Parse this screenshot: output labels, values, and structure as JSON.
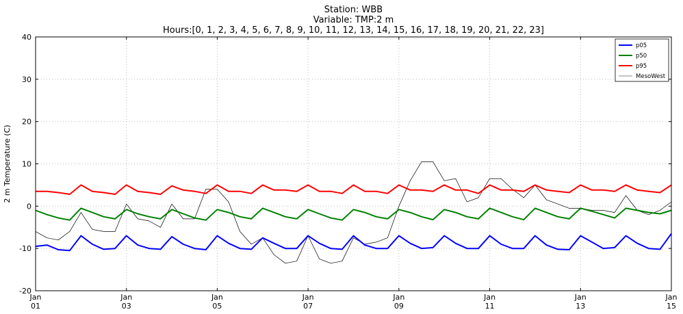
{
  "chart_data": {
    "type": "line",
    "title_lines": [
      "Station: WBB",
      "Variable: TMP:2 m",
      "Hours:[0, 1, 2, 3, 4, 5, 6, 7, 8, 9, 10, 11, 12, 13, 14, 15, 16, 17, 18, 19, 20, 21, 22, 23]"
    ],
    "xlabel": "",
    "ylabel": "2 m Temperature (C)",
    "xlim": [
      1,
      15
    ],
    "ylim": [
      -20,
      40
    ],
    "x_ticks": [
      {
        "value": 1,
        "line1": "Jan",
        "line2": "01"
      },
      {
        "value": 3,
        "line1": "Jan",
        "line2": "03"
      },
      {
        "value": 5,
        "line1": "Jan",
        "line2": "05"
      },
      {
        "value": 7,
        "line1": "Jan",
        "line2": "07"
      },
      {
        "value": 9,
        "line1": "Jan",
        "line2": "09"
      },
      {
        "value": 11,
        "line1": "Jan",
        "line2": "11"
      },
      {
        "value": 13,
        "line1": "Jan",
        "line2": "13"
      },
      {
        "value": 15,
        "line1": "Jan",
        "line2": "15"
      }
    ],
    "y_ticks": [
      -20,
      -10,
      0,
      10,
      20,
      30,
      40
    ],
    "grid": true,
    "legend_position": "top-right",
    "series": [
      {
        "name": "p05",
        "color": "#0000ff",
        "x": [
          1.0,
          1.25,
          1.5,
          1.75,
          2.0,
          2.25,
          2.5,
          2.75,
          3.0,
          3.25,
          3.5,
          3.75,
          4.0,
          4.25,
          4.5,
          4.75,
          5.0,
          5.25,
          5.5,
          5.75,
          6.0,
          6.25,
          6.5,
          6.75,
          7.0,
          7.25,
          7.5,
          7.75,
          8.0,
          8.25,
          8.5,
          8.75,
          9.0,
          9.25,
          9.5,
          9.75,
          10.0,
          10.25,
          10.5,
          10.75,
          11.0,
          11.25,
          11.5,
          11.75,
          12.0,
          12.25,
          12.5,
          12.75,
          13.0,
          13.25,
          13.5,
          13.75,
          14.0,
          14.25,
          14.5,
          14.75,
          15.0
        ],
        "y": [
          -9.5,
          -9.2,
          -10.3,
          -10.5,
          -7.0,
          -9.0,
          -10.2,
          -10.0,
          -7.0,
          -9.2,
          -10.0,
          -10.2,
          -7.2,
          -9.0,
          -10.0,
          -10.3,
          -7.0,
          -8.8,
          -10.0,
          -10.2,
          -7.5,
          -8.8,
          -10.0,
          -10.0,
          -7.0,
          -8.8,
          -10.0,
          -10.2,
          -7.0,
          -9.2,
          -10.0,
          -10.0,
          -7.0,
          -8.8,
          -10.0,
          -9.8,
          -7.0,
          -8.8,
          -10.0,
          -10.0,
          -7.0,
          -9.0,
          -10.0,
          -10.0,
          -7.0,
          -9.2,
          -10.2,
          -10.3,
          -7.0,
          -8.5,
          -10.0,
          -9.8,
          -7.0,
          -8.8,
          -10.0,
          -10.2,
          -6.5
        ]
      },
      {
        "name": "p50",
        "color": "#008000",
        "x": [
          1.0,
          1.25,
          1.5,
          1.75,
          2.0,
          2.25,
          2.5,
          2.75,
          3.0,
          3.25,
          3.5,
          3.75,
          4.0,
          4.25,
          4.5,
          4.75,
          5.0,
          5.25,
          5.5,
          5.75,
          6.0,
          6.25,
          6.5,
          6.75,
          7.0,
          7.25,
          7.5,
          7.75,
          8.0,
          8.25,
          8.5,
          8.75,
          9.0,
          9.25,
          9.5,
          9.75,
          10.0,
          10.25,
          10.5,
          10.75,
          11.0,
          11.25,
          11.5,
          11.75,
          12.0,
          12.25,
          12.5,
          12.75,
          13.0,
          13.25,
          13.5,
          13.75,
          14.0,
          14.25,
          14.5,
          14.75,
          15.0
        ],
        "y": [
          -1.0,
          -2.0,
          -2.8,
          -3.3,
          -0.5,
          -1.5,
          -2.5,
          -3.0,
          -0.8,
          -1.8,
          -2.5,
          -3.0,
          -0.8,
          -1.8,
          -2.8,
          -3.3,
          -0.8,
          -1.5,
          -2.5,
          -3.0,
          -0.5,
          -1.5,
          -2.5,
          -3.0,
          -0.8,
          -1.8,
          -2.8,
          -3.3,
          -0.8,
          -1.5,
          -2.5,
          -3.0,
          -0.8,
          -1.5,
          -2.5,
          -3.2,
          -0.8,
          -1.5,
          -2.5,
          -3.0,
          -0.5,
          -1.5,
          -2.5,
          -3.2,
          -0.5,
          -1.5,
          -2.5,
          -3.0,
          -0.5,
          -1.2,
          -2.0,
          -2.8,
          -0.5,
          -1.0,
          -1.5,
          -1.8,
          -1.0
        ]
      },
      {
        "name": "p95",
        "color": "#ff0000",
        "x": [
          1.0,
          1.25,
          1.5,
          1.75,
          2.0,
          2.25,
          2.5,
          2.75,
          3.0,
          3.25,
          3.5,
          3.75,
          4.0,
          4.25,
          4.5,
          4.75,
          5.0,
          5.25,
          5.5,
          5.75,
          6.0,
          6.25,
          6.5,
          6.75,
          7.0,
          7.25,
          7.5,
          7.75,
          8.0,
          8.25,
          8.5,
          8.75,
          9.0,
          9.25,
          9.5,
          9.75,
          10.0,
          10.25,
          10.5,
          10.75,
          11.0,
          11.25,
          11.5,
          11.75,
          12.0,
          12.25,
          12.5,
          12.75,
          13.0,
          13.25,
          13.5,
          13.75,
          14.0,
          14.25,
          14.5,
          14.75,
          15.0
        ],
        "y": [
          3.5,
          3.5,
          3.2,
          2.8,
          5.0,
          3.5,
          3.2,
          2.8,
          5.0,
          3.5,
          3.2,
          2.8,
          4.8,
          3.8,
          3.5,
          3.0,
          5.0,
          3.5,
          3.5,
          3.0,
          5.0,
          3.8,
          3.8,
          3.5,
          5.0,
          3.5,
          3.5,
          3.0,
          5.0,
          3.5,
          3.5,
          3.0,
          5.0,
          3.8,
          3.8,
          3.5,
          5.0,
          3.8,
          3.8,
          3.0,
          5.0,
          3.8,
          3.8,
          3.5,
          5.0,
          3.8,
          3.5,
          3.2,
          5.0,
          3.8,
          3.8,
          3.5,
          5.0,
          3.8,
          3.5,
          3.2,
          5.0
        ]
      },
      {
        "name": "MesoWest",
        "color": "#000000",
        "x": [
          1.0,
          1.25,
          1.5,
          1.75,
          2.0,
          2.25,
          2.5,
          2.75,
          3.0,
          3.25,
          3.5,
          3.75,
          4.0,
          4.25,
          4.5,
          4.75,
          5.0,
          5.25,
          5.5,
          5.75,
          6.0,
          6.25,
          6.5,
          6.75,
          7.0,
          7.25,
          7.5,
          7.75,
          8.0,
          8.25,
          8.5,
          8.75,
          9.0,
          9.25,
          9.5,
          9.75,
          10.0,
          10.25,
          10.5,
          10.75,
          11.0,
          11.25,
          11.5,
          11.75,
          12.0,
          12.25,
          12.5,
          12.75,
          13.0,
          13.25,
          13.5,
          13.75,
          14.0,
          14.25,
          14.5,
          14.75,
          15.0
        ],
        "y": [
          -6.0,
          -7.5,
          -8.0,
          -6.0,
          -1.5,
          -5.5,
          -6.0,
          -6.0,
          0.5,
          -3.0,
          -3.5,
          -5.0,
          0.5,
          -3.0,
          -3.0,
          4.0,
          4.0,
          1.0,
          -6.0,
          -9.0,
          -7.5,
          -11.5,
          -13.5,
          -13.0,
          -7.0,
          -12.5,
          -13.5,
          -13.0,
          -7.5,
          -9.0,
          -8.5,
          -7.5,
          0.0,
          6.0,
          10.5,
          10.5,
          6.0,
          6.5,
          1.0,
          2.0,
          6.5,
          6.5,
          4.0,
          2.0,
          5.0,
          1.5,
          0.5,
          -0.5,
          -0.5,
          -1.0,
          -1.0,
          -1.5,
          2.5,
          -1.0,
          -2.0,
          -1.0,
          1.0
        ]
      }
    ]
  }
}
